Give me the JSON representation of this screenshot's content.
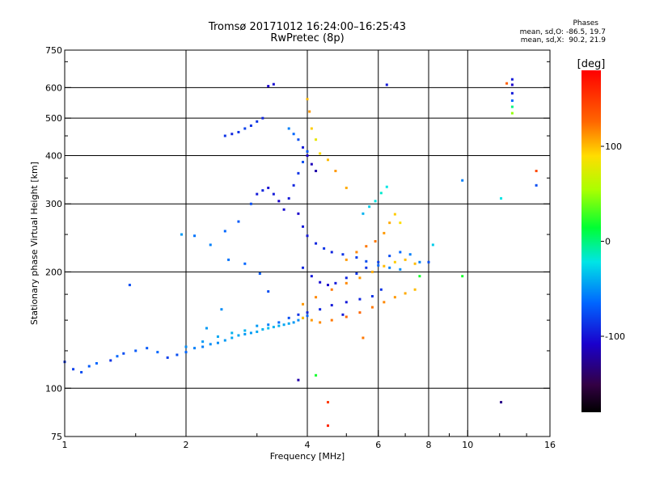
{
  "header": {
    "title_line1": "Tromsø 20171012 16:24:00–16:25:43",
    "title_line2": "RwPretec (8p)",
    "stats_title": "Phases",
    "stats_o": "mean, sd,O: -86.5, 19.7",
    "stats_x": "mean, sd,X:  90.2, 21.9"
  },
  "colorbar": {
    "unit_label": "[deg]",
    "tick_labels": [
      "100",
      "0",
      "-100"
    ],
    "tick_values": [
      100,
      0,
      -100
    ],
    "range": [
      -180,
      180
    ]
  },
  "chart_data": {
    "type": "scatter",
    "title": "",
    "xlabel": "Frequency [MHz]",
    "ylabel": "Stationary phase Virtual Height [km]",
    "x_scale": "log",
    "y_scale": "log",
    "xlim": [
      1,
      16
    ],
    "ylim": [
      75,
      750
    ],
    "grid": true,
    "x_ticks": [
      1,
      2,
      4,
      6,
      8,
      10,
      16
    ],
    "x_tick_labels": [
      "1",
      "2",
      "4",
      "6",
      "8",
      "10",
      "16"
    ],
    "x_minor_ticks": [
      1.5,
      3,
      5,
      7,
      9,
      12,
      14
    ],
    "y_ticks": [
      75,
      100,
      200,
      300,
      400,
      500,
      600,
      750
    ],
    "y_tick_labels": [
      "75",
      "100",
      "200",
      "300",
      "400",
      "500",
      "600",
      "750"
    ],
    "y_minor_ticks": [
      125,
      150,
      175,
      250,
      350,
      450,
      700
    ],
    "color_variable": "phase [deg]",
    "series": [
      {
        "name": "",
        "points": [
          [
            1.0,
            117,
            -90
          ],
          [
            1.05,
            112,
            -85
          ],
          [
            1.1,
            110,
            -80
          ],
          [
            1.15,
            114,
            -75
          ],
          [
            1.2,
            116,
            -70
          ],
          [
            1.3,
            118,
            -90
          ],
          [
            1.35,
            121,
            -70
          ],
          [
            1.4,
            123,
            -80
          ],
          [
            1.5,
            125,
            -75
          ],
          [
            1.6,
            127,
            -75
          ],
          [
            1.7,
            124,
            -70
          ],
          [
            1.8,
            120,
            -85
          ],
          [
            1.9,
            122,
            -80
          ],
          [
            2.0,
            124,
            -70
          ],
          [
            2.1,
            127,
            -60
          ],
          [
            2.2,
            128,
            -60
          ],
          [
            2.3,
            130,
            -55
          ],
          [
            2.4,
            131,
            -55
          ],
          [
            2.5,
            133,
            -50
          ],
          [
            2.6,
            135,
            -45
          ],
          [
            2.7,
            137,
            -45
          ],
          [
            2.8,
            138,
            -50
          ],
          [
            2.9,
            139,
            -50
          ],
          [
            3.0,
            140,
            -45
          ],
          [
            3.1,
            142,
            -40
          ],
          [
            3.2,
            143,
            -35
          ],
          [
            3.3,
            144,
            -40
          ],
          [
            3.4,
            145,
            -40
          ],
          [
            3.5,
            146,
            -45
          ],
          [
            3.6,
            147,
            -45
          ],
          [
            3.7,
            148,
            -50
          ],
          [
            3.8,
            150,
            -55
          ],
          [
            3.9,
            152,
            -60
          ],
          [
            4.0,
            154,
            -70
          ]
        ]
      },
      {
        "name": "",
        "points": [
          [
            2.0,
            128,
            -55
          ],
          [
            2.2,
            132,
            -50
          ],
          [
            2.4,
            136,
            -45
          ],
          [
            2.6,
            139,
            -40
          ],
          [
            2.8,
            141,
            -40
          ],
          [
            3.0,
            145,
            -50
          ],
          [
            3.2,
            146,
            -60
          ],
          [
            3.4,
            148,
            -70
          ],
          [
            3.6,
            152,
            -80
          ],
          [
            3.8,
            155,
            -90
          ],
          [
            4.0,
            157,
            -95
          ],
          [
            4.3,
            160,
            -95
          ],
          [
            4.6,
            164,
            -100
          ],
          [
            5.0,
            167,
            -100
          ],
          [
            5.4,
            170,
            -95
          ],
          [
            5.8,
            173,
            -90
          ]
        ]
      },
      {
        "name": "",
        "points": [
          [
            3.9,
            205,
            -95
          ],
          [
            4.1,
            195,
            -100
          ],
          [
            4.3,
            188,
            -105
          ],
          [
            4.5,
            185,
            -110
          ],
          [
            4.7,
            187,
            -100
          ],
          [
            5.0,
            193,
            -95
          ],
          [
            5.3,
            198,
            -90
          ],
          [
            5.6,
            205,
            -90
          ],
          [
            6.0,
            212,
            -85
          ],
          [
            6.4,
            220,
            -80
          ],
          [
            6.8,
            225,
            -70
          ],
          [
            7.2,
            222,
            -60
          ],
          [
            7.6,
            212,
            -60
          ],
          [
            8.0,
            212,
            -80
          ]
        ]
      },
      {
        "name": "",
        "points": [
          [
            3.8,
            283,
            -110
          ],
          [
            3.9,
            262,
            -100
          ],
          [
            4.0,
            248,
            -100
          ],
          [
            4.2,
            237,
            -95
          ],
          [
            4.4,
            230,
            -90
          ],
          [
            4.6,
            225,
            -95
          ],
          [
            4.9,
            222,
            -90
          ],
          [
            5.3,
            218,
            -85
          ],
          [
            5.6,
            213,
            -80
          ],
          [
            6.0,
            208,
            -70
          ],
          [
            6.4,
            205,
            -60
          ],
          [
            6.8,
            203,
            -55
          ]
        ]
      },
      {
        "name": "",
        "points": [
          [
            3.9,
            152,
            100
          ],
          [
            4.1,
            150,
            110
          ],
          [
            4.3,
            148,
            115
          ],
          [
            4.6,
            150,
            120
          ],
          [
            5.0,
            153,
            125
          ],
          [
            5.4,
            157,
            125
          ],
          [
            5.8,
            162,
            120
          ],
          [
            6.2,
            167,
            115
          ],
          [
            6.6,
            172,
            110
          ],
          [
            7.0,
            176,
            105
          ],
          [
            7.4,
            180,
            100
          ]
        ]
      },
      {
        "name": "",
        "points": [
          [
            3.9,
            165,
            110
          ],
          [
            4.2,
            172,
            115
          ],
          [
            4.6,
            180,
            120
          ],
          [
            5.0,
            187,
            115
          ],
          [
            5.4,
            193,
            110
          ],
          [
            5.8,
            200,
            105
          ],
          [
            6.2,
            207,
            100
          ],
          [
            6.6,
            212,
            95
          ],
          [
            7.0,
            215,
            100
          ],
          [
            7.4,
            210,
            100
          ]
        ]
      },
      {
        "name": "",
        "points": [
          [
            5.0,
            215,
            110
          ],
          [
            5.3,
            225,
            115
          ],
          [
            5.6,
            233,
            120
          ],
          [
            5.9,
            240,
            120
          ],
          [
            6.2,
            252,
            110
          ],
          [
            6.4,
            268,
            105
          ],
          [
            6.6,
            282,
            95
          ],
          [
            6.8,
            268,
            90
          ]
        ]
      },
      {
        "name": "",
        "points": [
          [
            5.5,
            283,
            -40
          ],
          [
            5.7,
            295,
            -30
          ],
          [
            5.9,
            305,
            -20
          ],
          [
            6.1,
            320,
            -15
          ],
          [
            6.3,
            332,
            -20
          ]
        ]
      },
      {
        "name": "",
        "points": [
          [
            3.0,
            318,
            -100
          ],
          [
            3.1,
            325,
            -95
          ],
          [
            3.2,
            330,
            -105
          ],
          [
            3.3,
            318,
            -100
          ],
          [
            3.4,
            305,
            -110
          ],
          [
            3.5,
            290,
            -105
          ],
          [
            3.6,
            310,
            -100
          ],
          [
            3.7,
            335,
            -95
          ],
          [
            3.8,
            360,
            -90
          ],
          [
            3.9,
            385,
            -80
          ],
          [
            4.0,
            410,
            -75
          ]
        ]
      },
      {
        "name": "",
        "points": [
          [
            2.5,
            450,
            -90
          ],
          [
            2.6,
            455,
            -95
          ],
          [
            2.7,
            460,
            -90
          ],
          [
            2.8,
            470,
            -85
          ],
          [
            2.9,
            478,
            -90
          ],
          [
            3.0,
            490,
            -90
          ],
          [
            3.1,
            500,
            -95
          ],
          [
            3.2,
            605,
            -110
          ],
          [
            3.3,
            612,
            -105
          ]
        ]
      },
      {
        "name": "",
        "points": [
          [
            3.6,
            470,
            -60
          ],
          [
            3.7,
            455,
            -70
          ],
          [
            3.8,
            440,
            -80
          ],
          [
            3.9,
            420,
            -100
          ],
          [
            4.0,
            400,
            -110
          ],
          [
            4.1,
            380,
            -115
          ],
          [
            4.2,
            365,
            -120
          ]
        ]
      },
      {
        "name": "",
        "points": [
          [
            4.0,
            560,
            100
          ],
          [
            4.05,
            520,
            110
          ],
          [
            4.1,
            470,
            95
          ],
          [
            4.2,
            440,
            80
          ],
          [
            4.3,
            405,
            90
          ],
          [
            4.5,
            390,
            100
          ],
          [
            4.7,
            365,
            110
          ],
          [
            5.0,
            330,
            105
          ]
        ]
      },
      {
        "name": "",
        "points": [
          [
            2.1,
            248,
            -65
          ],
          [
            2.3,
            235,
            -60
          ],
          [
            2.5,
            255,
            -70
          ],
          [
            2.7,
            270,
            -75
          ],
          [
            2.9,
            300,
            -80
          ],
          [
            1.95,
            250,
            -50
          ],
          [
            1.45,
            185,
            -80
          ],
          [
            2.55,
            215,
            -65
          ],
          [
            2.8,
            210,
            -70
          ],
          [
            3.05,
            198,
            -75
          ],
          [
            3.2,
            178,
            -80
          ],
          [
            2.25,
            143,
            -50
          ],
          [
            2.45,
            160,
            -55
          ]
        ]
      },
      {
        "name": "",
        "points": [
          [
            12.9,
            630,
            -100
          ],
          [
            12.9,
            610,
            -110
          ],
          [
            12.9,
            580,
            -100
          ],
          [
            12.9,
            555,
            -70
          ],
          [
            12.9,
            535,
            0
          ],
          [
            12.9,
            515,
            50
          ],
          [
            12.5,
            615,
            130
          ],
          [
            14.8,
            365,
            140
          ],
          [
            14.8,
            335,
            -80
          ],
          [
            9.7,
            345,
            -60
          ],
          [
            9.7,
            195,
            20
          ],
          [
            12.1,
            310,
            -20
          ],
          [
            12.1,
            92,
            -130
          ],
          [
            4.5,
            92,
            150
          ],
          [
            4.5,
            80,
            160
          ],
          [
            6.3,
            610,
            -100
          ],
          [
            8.2,
            235,
            -30
          ],
          [
            4.2,
            108,
            20
          ],
          [
            3.8,
            105,
            -120
          ],
          [
            5.5,
            135,
            120
          ],
          [
            4.9,
            155,
            -100
          ],
          [
            6.1,
            180,
            -90
          ],
          [
            7.6,
            195,
            20
          ]
        ]
      }
    ]
  }
}
